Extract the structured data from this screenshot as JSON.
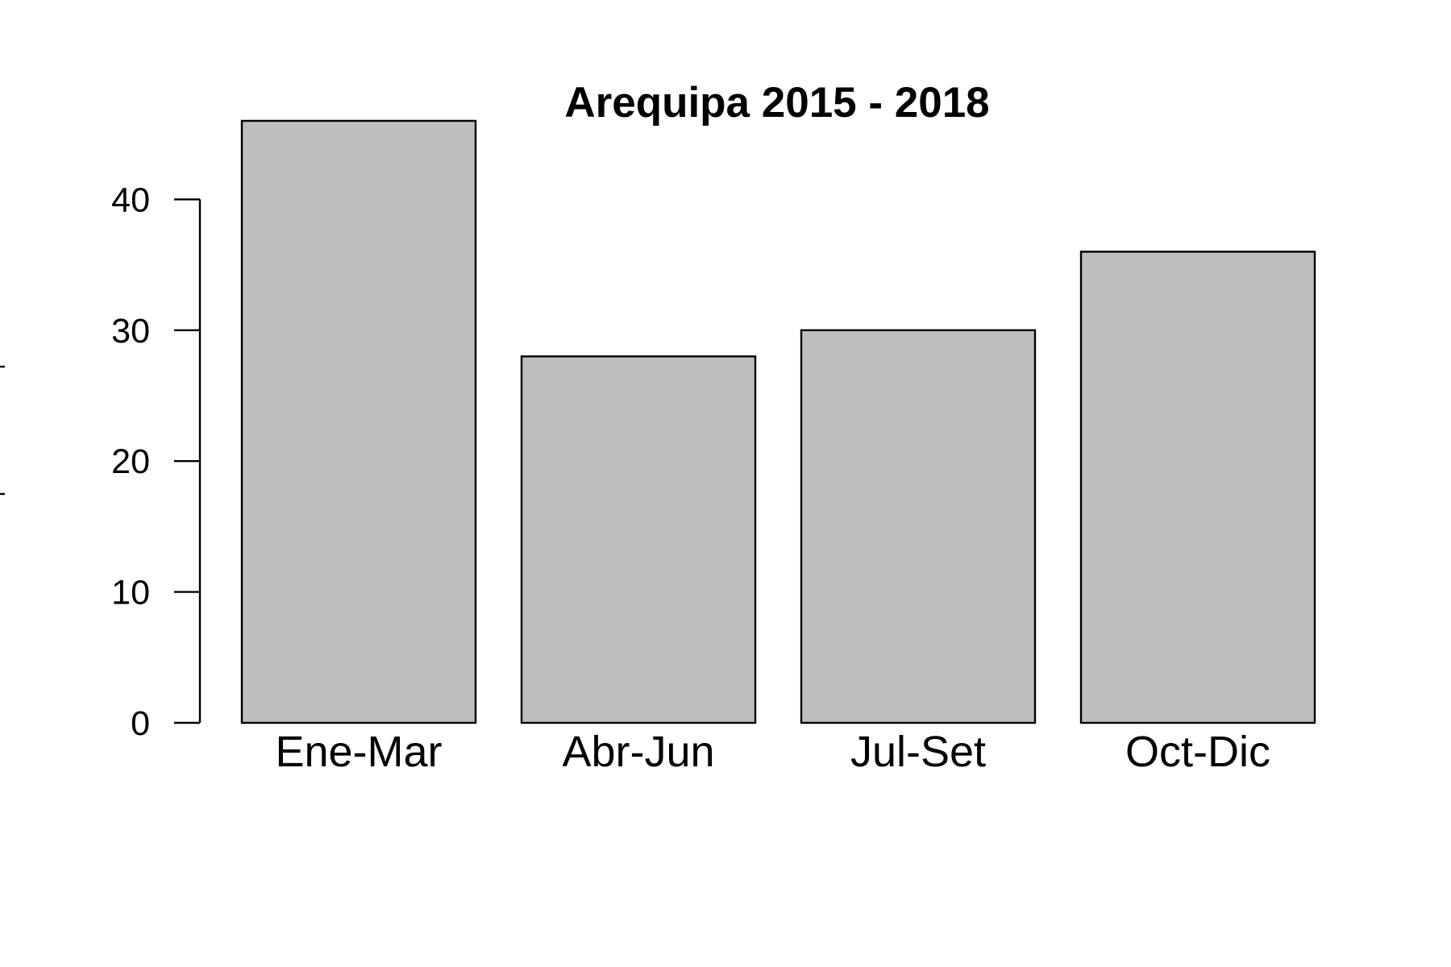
{
  "chart_data": {
    "type": "bar",
    "title": "Arequipa 2015 - 2018",
    "xlabel": "",
    "ylabel": "",
    "categories": [
      "Ene-Mar",
      "Abr-Jun",
      "Jul-Set",
      "Oct-Dic"
    ],
    "values": [
      46,
      28,
      30,
      36
    ],
    "ylim": [
      0,
      46
    ],
    "yticks": [
      0,
      10,
      20,
      30,
      40
    ],
    "ytick_labels": [
      "0",
      "10",
      "20",
      "30",
      "40"
    ],
    "bar_color": "#bebebe",
    "grid": false,
    "legend": "none"
  }
}
